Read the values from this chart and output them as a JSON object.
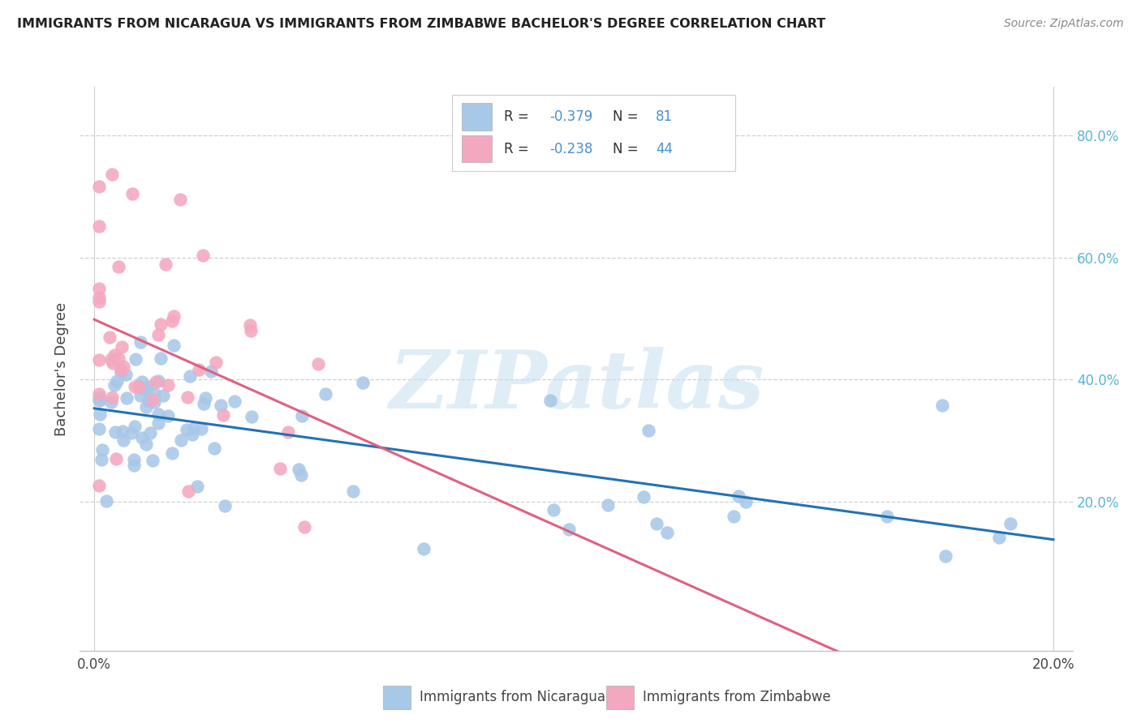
{
  "title": "IMMIGRANTS FROM NICARAGUA VS IMMIGRANTS FROM ZIMBABWE BACHELOR'S DEGREE CORRELATION CHART",
  "source": "Source: ZipAtlas.com",
  "ylabel": "Bachelor's Degree",
  "blue_scatter_color": "#a8c8e8",
  "pink_scatter_color": "#f4a8c0",
  "blue_line_color": "#2272b4",
  "pink_line_color": "#e06080",
  "background_color": "#ffffff",
  "grid_color": "#d0d0d0",
  "watermark": "ZIPatlas",
  "right_axis_color": "#5ab4d6",
  "legend_text_color": "#4a90d0",
  "legend_label_color": "#333333",
  "R_nic": -0.379,
  "N_nic": 81,
  "R_zim": -0.238,
  "N_zim": 44,
  "x_min": 0.0,
  "x_max": 0.2,
  "y_min": 0.0,
  "y_max": 0.85,
  "bottom_legend_blue": "Immigrants from Nicaragua",
  "bottom_legend_pink": "Immigrants from Zimbabwe"
}
